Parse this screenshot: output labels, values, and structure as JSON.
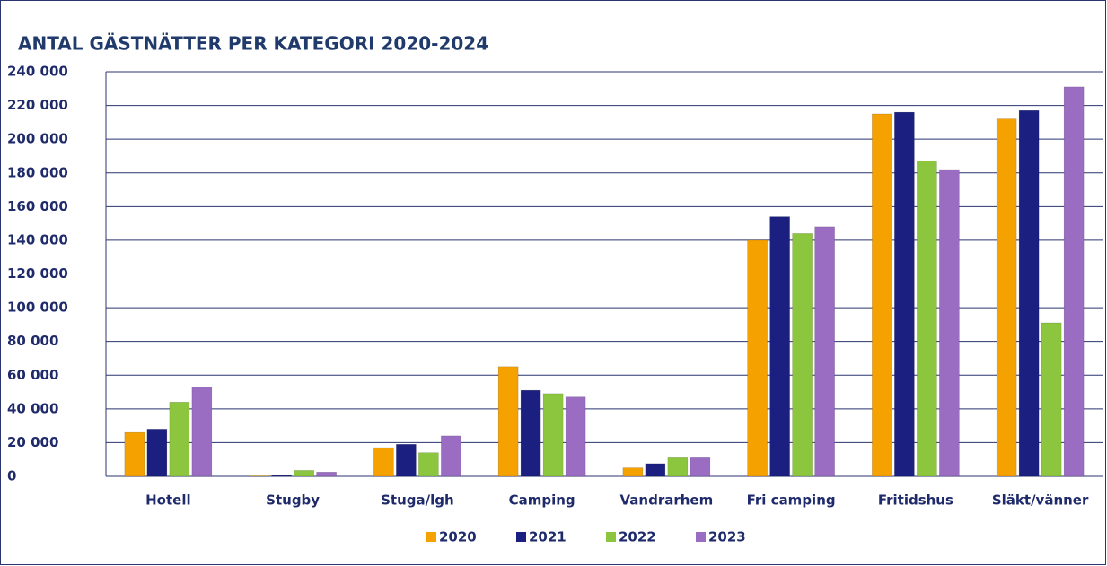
{
  "chart_data": {
    "type": "bar",
    "title": "ANTAL GÄSTNÄTTER PER KATEGORI 2020-2024",
    "categories": [
      "Hotell",
      "Stugby",
      "Stuga/lgh",
      "Camping",
      "Vandrarhem",
      "Fri camping",
      "Fritidshus",
      "Släkt/vänner"
    ],
    "series": [
      {
        "name": "2020",
        "color": "#f5a100",
        "values": [
          26000,
          300,
          17000,
          65000,
          5000,
          140000,
          215000,
          212000
        ]
      },
      {
        "name": "2021",
        "color": "#1a1f80",
        "values": [
          28000,
          500,
          19000,
          51000,
          7500,
          154000,
          216000,
          217000
        ]
      },
      {
        "name": "2022",
        "color": "#8cc63e",
        "values": [
          44000,
          3500,
          14000,
          49000,
          11000,
          144000,
          187000,
          91000
        ]
      },
      {
        "name": "2023",
        "color": "#9a6cc2",
        "values": [
          53000,
          2500,
          24000,
          47000,
          11000,
          148000,
          182000,
          231000
        ]
      }
    ],
    "ylim": [
      0,
      240000
    ],
    "yticks": [
      0,
      {
        "value": 20000,
        "label": "20 000"
      },
      {
        "value": 40000,
        "label": "40 000"
      },
      {
        "value": 60000,
        "label": "60 000"
      },
      {
        "value": 80000,
        "label": "80 000"
      },
      {
        "value": 100000,
        "label": "100 000"
      },
      {
        "value": 120000,
        "label": "120 000"
      },
      {
        "value": 140000,
        "label": "140 000"
      },
      {
        "value": 160000,
        "label": "160 000"
      },
      {
        "value": 180000,
        "label": "180 000"
      },
      {
        "value": 200000,
        "label": "200 000"
      },
      {
        "value": 220000,
        "label": "220 000"
      },
      {
        "value": 240000,
        "label": "240 000"
      }
    ],
    "grid": true,
    "legend": "bottom"
  }
}
